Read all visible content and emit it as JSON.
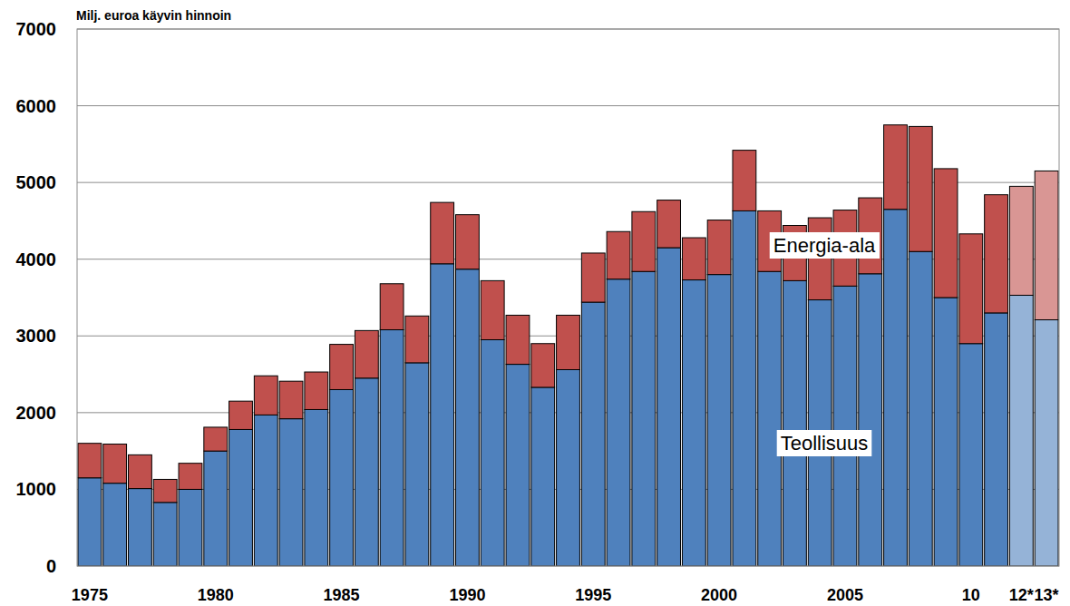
{
  "chart_data": {
    "type": "bar",
    "stacked": true,
    "y_label": "Milj. euroa käyvin hinnoin",
    "categories": [
      "1975",
      null,
      null,
      null,
      null,
      "1980",
      null,
      null,
      null,
      null,
      "1985",
      null,
      null,
      null,
      null,
      "1990",
      null,
      null,
      null,
      null,
      "1995",
      null,
      null,
      null,
      null,
      "2000",
      null,
      null,
      null,
      null,
      "2005",
      null,
      null,
      null,
      null,
      "10",
      null,
      "12*",
      "13*"
    ],
    "series": [
      {
        "name": "Teollisuus",
        "colors": [
          "#4f81bd",
          "#4f81bd",
          "#4f81bd",
          "#4f81bd",
          "#4f81bd",
          "#4f81bd",
          "#4f81bd",
          "#4f81bd",
          "#4f81bd",
          "#4f81bd",
          "#4f81bd",
          "#4f81bd",
          "#4f81bd",
          "#4f81bd",
          "#4f81bd",
          "#4f81bd",
          "#4f81bd",
          "#4f81bd",
          "#4f81bd",
          "#4f81bd",
          "#4f81bd",
          "#4f81bd",
          "#4f81bd",
          "#4f81bd",
          "#4f81bd",
          "#4f81bd",
          "#4f81bd",
          "#4f81bd",
          "#4f81bd",
          "#4f81bd",
          "#4f81bd",
          "#4f81bd",
          "#4f81bd",
          "#4f81bd",
          "#4f81bd",
          "#4f81bd",
          "#4f81bd",
          "#95b3d7",
          "#95b3d7"
        ],
        "values": [
          1150,
          1080,
          1010,
          830,
          1000,
          1500,
          1780,
          1970,
          1920,
          2040,
          2300,
          2450,
          3080,
          2650,
          3940,
          3870,
          2950,
          2630,
          2330,
          2560,
          3440,
          3740,
          3840,
          4150,
          3730,
          3800,
          4630,
          3840,
          3720,
          3470,
          3650,
          3810,
          4650,
          4100,
          3500,
          2900,
          3300,
          3530,
          3210
        ]
      },
      {
        "name": "Energia-ala",
        "colors": [
          "#c0504d",
          "#c0504d",
          "#c0504d",
          "#c0504d",
          "#c0504d",
          "#c0504d",
          "#c0504d",
          "#c0504d",
          "#c0504d",
          "#c0504d",
          "#c0504d",
          "#c0504d",
          "#c0504d",
          "#c0504d",
          "#c0504d",
          "#c0504d",
          "#c0504d",
          "#c0504d",
          "#c0504d",
          "#c0504d",
          "#c0504d",
          "#c0504d",
          "#c0504d",
          "#c0504d",
          "#c0504d",
          "#c0504d",
          "#c0504d",
          "#c0504d",
          "#c0504d",
          "#c0504d",
          "#c0504d",
          "#c0504d",
          "#c0504d",
          "#c0504d",
          "#c0504d",
          "#c0504d",
          "#c0504d",
          "#d99694",
          "#d99694"
        ],
        "values": [
          450,
          510,
          440,
          300,
          340,
          310,
          370,
          510,
          490,
          490,
          590,
          620,
          600,
          610,
          800,
          710,
          770,
          640,
          570,
          710,
          640,
          620,
          780,
          620,
          550,
          710,
          790,
          790,
          720,
          1070,
          990,
          990,
          1100,
          1630,
          1680,
          1430,
          1540,
          1420,
          1940
        ]
      }
    ],
    "ylim": [
      0,
      7000
    ],
    "yticks": [
      0,
      1000,
      2000,
      3000,
      4000,
      5000,
      6000,
      7000
    ],
    "grid": true
  }
}
